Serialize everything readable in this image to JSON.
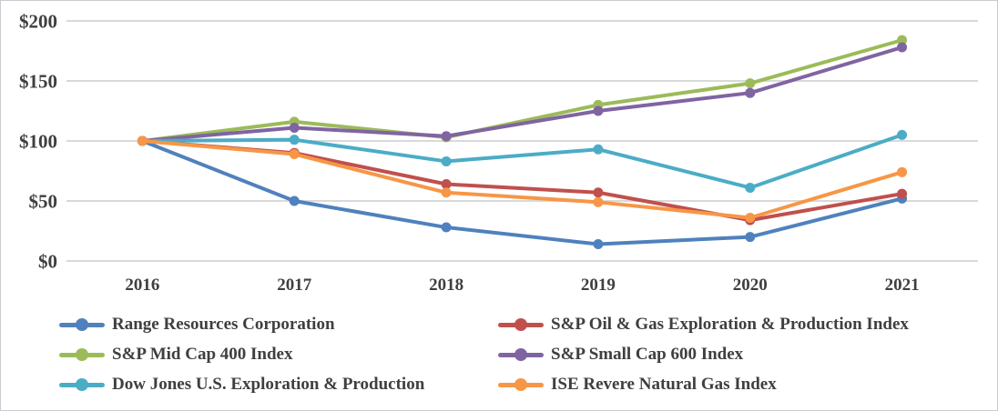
{
  "chart_data": {
    "type": "line",
    "title": "",
    "categories": [
      "2016",
      "2017",
      "2018",
      "2019",
      "2020",
      "2021"
    ],
    "series": [
      {
        "name": "Range Resources Corporation",
        "color": "#4F81BD",
        "values": [
          100,
          50,
          28,
          14,
          20,
          52
        ]
      },
      {
        "name": "S&P Oil & Gas Exploration & Production Index",
        "color": "#C0504D",
        "values": [
          100,
          90,
          64,
          57,
          34,
          56
        ]
      },
      {
        "name": "S&P Mid Cap 400 Index",
        "color": "#9BBB59",
        "values": [
          100,
          116,
          103,
          130,
          148,
          184
        ]
      },
      {
        "name": "S&P Small Cap 600 Index",
        "color": "#8064A2",
        "values": [
          100,
          111,
          104,
          125,
          140,
          178
        ]
      },
      {
        "name": "Dow Jones U.S. Exploration & Production",
        "color": "#4BACC6",
        "values": [
          100,
          101,
          83,
          93,
          61,
          105
        ]
      },
      {
        "name": "ISE Revere Natural Gas Index",
        "color": "#F79646",
        "values": [
          100,
          89,
          57,
          49,
          36,
          74
        ]
      }
    ],
    "xlabel": "",
    "ylabel": "",
    "y_ticks": [
      "$0",
      "$50",
      "$100",
      "$150",
      "$200"
    ],
    "ylim": [
      0,
      200
    ],
    "grid": true,
    "gridline_color": "#d9d9d9",
    "text_color": "#3f3f3f",
    "legend_position": "bottom",
    "legend_columns": 2,
    "legend_row_major_order": [
      0,
      1,
      2,
      3,
      4,
      5
    ]
  }
}
